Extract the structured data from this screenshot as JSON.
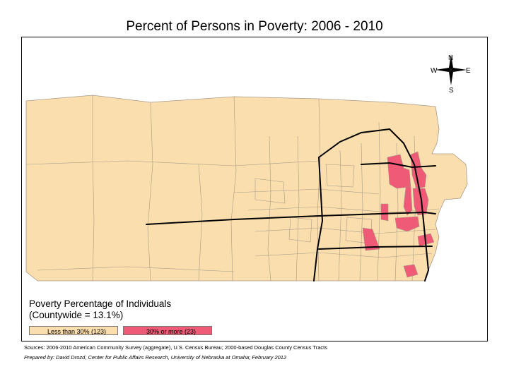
{
  "title": "Percent of Persons in Poverty: 2006 - 2010",
  "compass": {
    "north": "N",
    "south": "S",
    "east": "E",
    "west": "W"
  },
  "legend": {
    "title_line1": "Poverty Percentage of Individuals",
    "title_line2": "(Countywide = 13.1%)",
    "items": [
      {
        "label": "Less than 30% (123)",
        "color": "#fbdeae"
      },
      {
        "label": "30% or more (23)",
        "color": "#ef5a77"
      }
    ]
  },
  "colors": {
    "tract_fill": "#fbdeae",
    "tract_line": "#a89a86",
    "poverty_fill": "#ef5a77",
    "highway": "#000000"
  },
  "sources": "Sources: 2006-2010 American Community Survey (aggregate), U.S. Census Bureau; 2000-based Douglas County Census Tracts",
  "prepared_by": "Prepared by: David Drozd, Center for Public Affairs Research, University of Nebraska at Omaha; February 2012"
}
